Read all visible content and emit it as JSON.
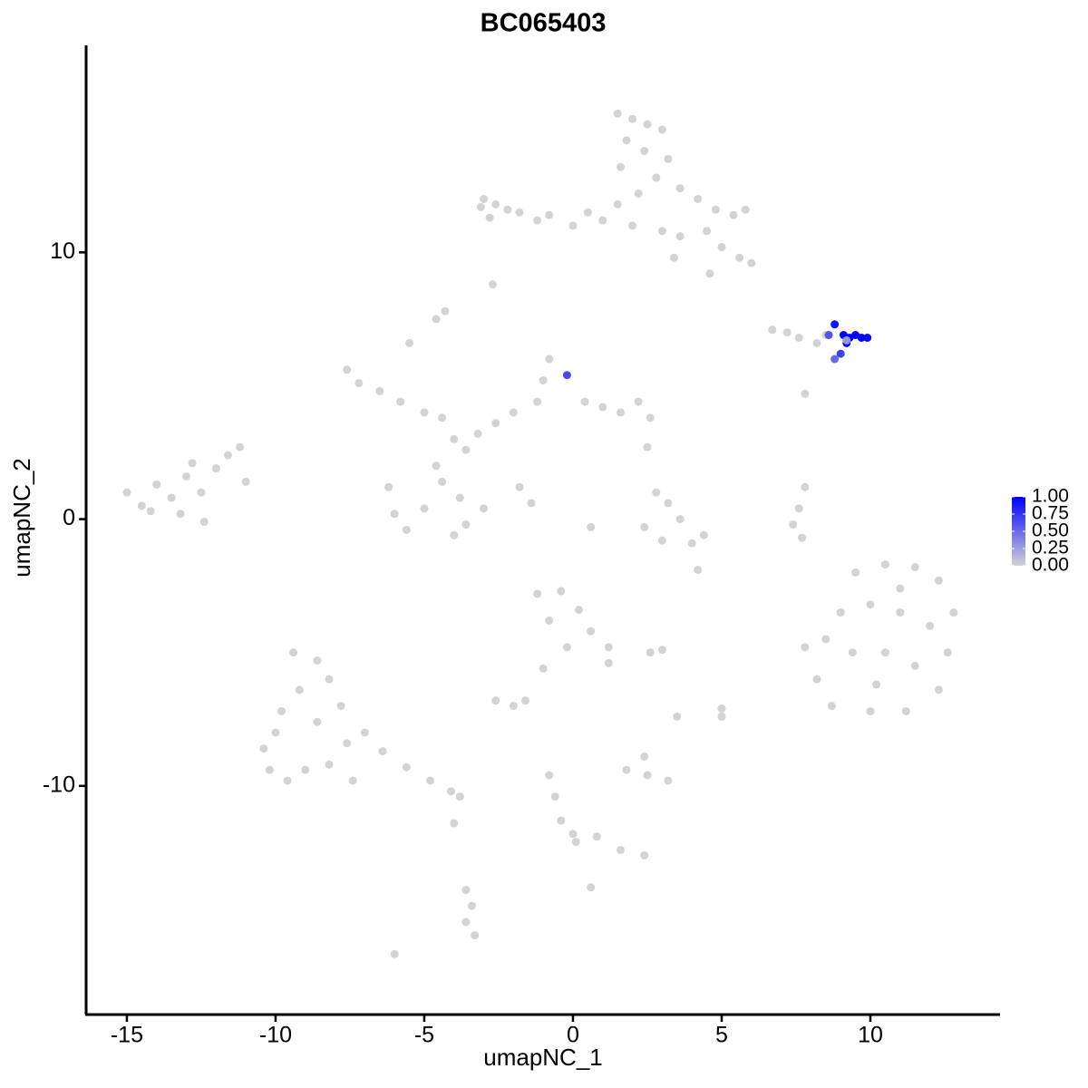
{
  "chart_data": {
    "type": "scatter",
    "title": "BC065403",
    "xlabel": "umapNC_1",
    "ylabel": "umapNC_2",
    "xlim": [
      -16.37,
      14.36
    ],
    "ylim": [
      -18.57,
      17.76
    ],
    "xticks": [
      -15,
      -10,
      -5,
      0,
      5,
      10
    ],
    "yticks": [
      -10,
      0,
      10
    ],
    "color_low": "#d3d3d3",
    "color_high": "#0000ff",
    "color_lim": [
      0,
      1
    ],
    "color_ticks": [
      {
        "value": 0,
        "label": "0.00"
      },
      {
        "value": 0.25,
        "label": "0.25"
      },
      {
        "value": 0.5,
        "label": "0.50"
      },
      {
        "value": 0.75,
        "label": "0.75"
      },
      {
        "value": 1,
        "label": "1.00"
      }
    ],
    "x": [
      1.5,
      2,
      2.5,
      3,
      1.8,
      2.4,
      3.2,
      1.6,
      2.8,
      3.6,
      2.2,
      4.2,
      4.8,
      5.4,
      5.8,
      4.5,
      5,
      5.6,
      6,
      4.6,
      1.5,
      1,
      0.5,
      0,
      2,
      3,
      3.4,
      3.6,
      -3,
      -2.6,
      -2.2,
      -1.8,
      -2.8,
      -1.2,
      -0.8,
      -3.1,
      -2.7,
      -4.6,
      6.7,
      7.2,
      7.6,
      8.2,
      8.5,
      8.8,
      9.1,
      9.3,
      9.5,
      9.7,
      9.9,
      9.2,
      8.6,
      9,
      8.8,
      9.2,
      7.8,
      -15,
      -14.5,
      -14,
      -13.5,
      -13,
      -12.5,
      -12,
      -11.6,
      -11.2,
      -14.2,
      -13.2,
      -12.4,
      -11,
      -12.8,
      -7.6,
      -7.2,
      -6.5,
      -5.8,
      -5,
      -4.4,
      -4,
      -3.6,
      -3.2,
      -2.6,
      -2,
      -1.2,
      -1,
      -0.8,
      -0.2,
      0.4,
      1,
      1.6,
      2.2,
      2.6,
      -6.2,
      -6,
      -5.6,
      -5,
      -4.4,
      -3.8,
      -3.6,
      -4,
      -4.6,
      -3,
      -1.8,
      -1.4,
      -5.5,
      -4.3,
      2.8,
      3.2,
      3.6,
      2.4,
      3,
      4,
      4.4,
      4.2,
      0.6,
      7.8,
      7.6,
      7.4,
      7.7,
      2.5,
      9.5,
      10.5,
      11.5,
      12.3,
      12.8,
      12.6,
      12.3,
      11.2,
      10,
      8.7,
      8.2,
      7.8,
      9,
      10,
      11,
      12,
      9.4,
      10.5,
      11.5,
      10.2,
      8.5,
      11,
      -1.2,
      -0.4,
      0.2,
      -0.8,
      0.6,
      1.2,
      1.2,
      -0.2,
      -1,
      -1.6,
      -2.6,
      -2,
      2.6,
      3,
      5,
      5,
      3.5,
      1.8,
      2.5,
      2.4,
      3.2,
      -9.4,
      -8.6,
      -8.2,
      -9.2,
      -9.8,
      -10,
      -10.4,
      -10.2,
      -9.6,
      -9,
      -8.2,
      -7.6,
      -7,
      -6.4,
      -5.6,
      -4.8,
      -4.1,
      -3.8,
      -8.6,
      -7.8,
      -7.4,
      -4,
      -0.8,
      -0.6,
      -0.4,
      0,
      0.1,
      0.8,
      1.6,
      2.4,
      -3.6,
      -3.4,
      -3.6,
      -3.3,
      -6,
      0.6
    ],
    "y": [
      15.2,
      15,
      14.8,
      14.6,
      14.2,
      13.8,
      13.5,
      13.2,
      12.8,
      12.4,
      12.2,
      12,
      11.6,
      11.4,
      11.6,
      10.8,
      10.2,
      9.8,
      9.6,
      9.2,
      11.8,
      11.2,
      11.5,
      11,
      11,
      10.8,
      9.8,
      10.6,
      12,
      11.8,
      11.6,
      11.5,
      11.3,
      11.2,
      11.4,
      11.7,
      8.8,
      7.5,
      7.1,
      7,
      6.8,
      6.6,
      6.9,
      7.3,
      6.9,
      6.8,
      6.9,
      6.8,
      6.8,
      6.6,
      6.9,
      6.2,
      6,
      6.7,
      4.7,
      1,
      0.5,
      1.3,
      0.8,
      1.6,
      1,
      1.9,
      2.4,
      2.7,
      0.3,
      0.2,
      -0.1,
      1.4,
      2.1,
      5.6,
      5.1,
      4.8,
      4.4,
      4,
      3.8,
      3,
      2.6,
      3.2,
      3.6,
      4,
      4.4,
      5.2,
      6,
      5.4,
      4.4,
      4.2,
      4,
      4.4,
      3.8,
      1.2,
      0.2,
      -0.4,
      0.4,
      1.4,
      0.8,
      -0.2,
      -0.6,
      2,
      0.4,
      1.2,
      0.6,
      6.6,
      7.8,
      1,
      0.6,
      0,
      -0.3,
      -0.8,
      -0.9,
      -0.6,
      -1.9,
      -0.3,
      1.2,
      0.4,
      -0.2,
      -0.7,
      2.7,
      -2,
      -1.7,
      -1.8,
      -2.3,
      -3.5,
      -5,
      -6.4,
      -7.2,
      -7.2,
      -7,
      -6,
      -4.8,
      -3.5,
      -3.2,
      -3.5,
      -4,
      -5,
      -5,
      -5.5,
      -6.2,
      -4.5,
      -2.6,
      -2.8,
      -2.7,
      -3.4,
      -3.8,
      -4.2,
      -4.8,
      -5.4,
      -4.8,
      -5.6,
      -6.8,
      -6.8,
      -7,
      -5,
      -4.9,
      -7.1,
      -7.4,
      -7.4,
      -9.4,
      -9.6,
      -8.9,
      -9.8,
      -5,
      -5.3,
      -6,
      -6.4,
      -7.2,
      -8,
      -8.6,
      -9.4,
      -9.8,
      -9.4,
      -9.2,
      -8.4,
      -8,
      -8.7,
      -9.3,
      -9.8,
      -10.2,
      -10.4,
      -7.6,
      -7,
      -9.8,
      -11.4,
      -9.6,
      -10.4,
      -11.3,
      -11.8,
      -12.1,
      -11.9,
      -12.4,
      -12.6,
      -13.9,
      -14.5,
      -15.1,
      -15.6,
      -16.3,
      -13.8
    ],
    "values": [
      0,
      0,
      0,
      0,
      0,
      0,
      0,
      0,
      0,
      0,
      0,
      0,
      0,
      0,
      0,
      0,
      0,
      0,
      0,
      0,
      0,
      0,
      0,
      0,
      0,
      0,
      0,
      0,
      0,
      0,
      0,
      0,
      0,
      0,
      0,
      0,
      0,
      0,
      0,
      0,
      0,
      0,
      0,
      0.9,
      1,
      1,
      1,
      1,
      0.95,
      1,
      0.6,
      0.7,
      0.5,
      0.3,
      0,
      0,
      0,
      0,
      0,
      0,
      0,
      0,
      0,
      0,
      0,
      0,
      0,
      0,
      0,
      0,
      0,
      0,
      0,
      0,
      0,
      0,
      0,
      0,
      0,
      0,
      0,
      0,
      0,
      0.65,
      0,
      0,
      0,
      0,
      0,
      0,
      0,
      0,
      0,
      0,
      0,
      0,
      0,
      0,
      0,
      0,
      0,
      0,
      0,
      0,
      0,
      0,
      0,
      0,
      0,
      0,
      0,
      0,
      0,
      0,
      0,
      0,
      0,
      0,
      0,
      0,
      0,
      0,
      0,
      0,
      0,
      0,
      0,
      0,
      0,
      0,
      0,
      0,
      0,
      0,
      0,
      0,
      0,
      0,
      0,
      0,
      0,
      0,
      0,
      0,
      0,
      0,
      0,
      0,
      0,
      0,
      0,
      0,
      0,
      0,
      0,
      0,
      0,
      0,
      0,
      0,
      0,
      0,
      0,
      0,
      0,
      0,
      0,
      0,
      0,
      0,
      0,
      0,
      0,
      0,
      0,
      0,
      0,
      0,
      0,
      0,
      0,
      0,
      0,
      0,
      0,
      0,
      0,
      0,
      0,
      0,
      0,
      0,
      0,
      0,
      0,
      0
    ]
  }
}
